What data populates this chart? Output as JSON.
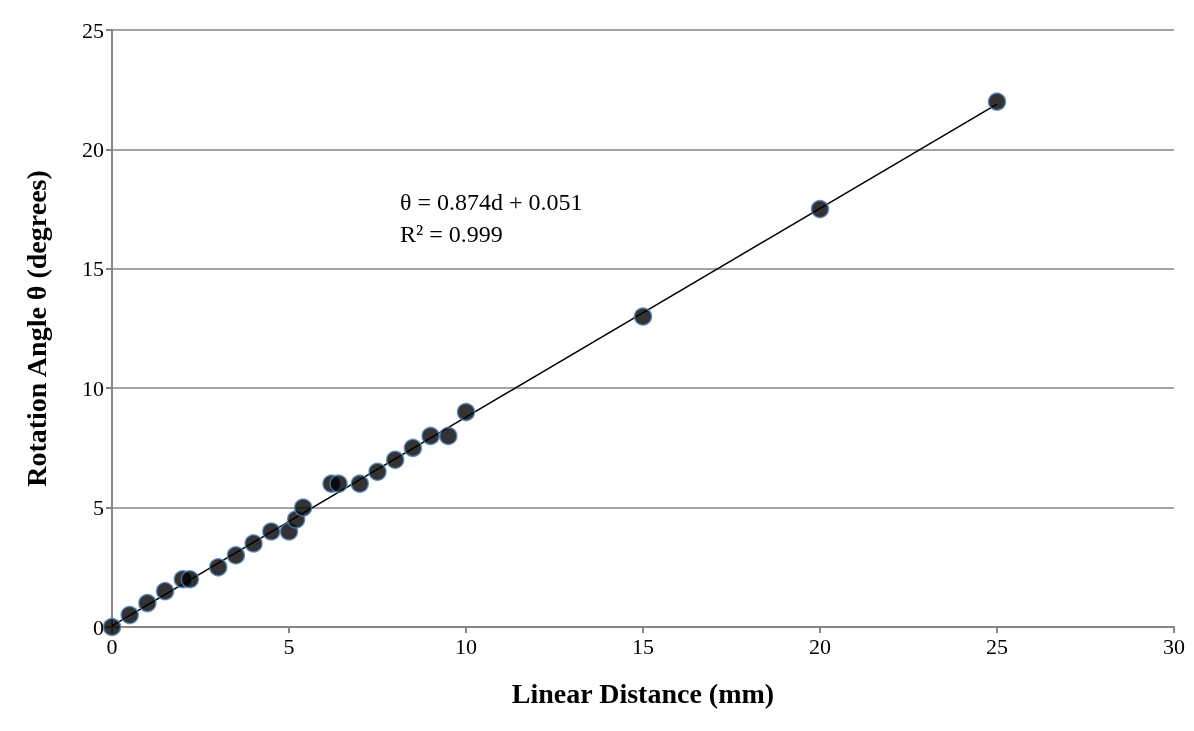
{
  "chart_data": {
    "type": "scatter",
    "xlabel": "Linear Distance (mm)",
    "ylabel": "Rotation Angle θ (degrees)",
    "xlim": [
      0,
      30
    ],
    "xticks": [
      0,
      5,
      10,
      15,
      20,
      25,
      30
    ],
    "ylim": [
      0,
      25
    ],
    "yticks": [
      0,
      5,
      10,
      15,
      20,
      25
    ],
    "grid": "y",
    "marker": "circle",
    "annotations": [
      "θ = 0.874d + 0.051",
      "R² = 0.999"
    ],
    "series": [
      {
        "color": "#000000",
        "x": [
          0,
          0.5,
          1,
          1.5,
          2,
          2.2,
          3,
          3.5,
          4,
          4.5,
          5,
          5.2,
          5.4,
          6.2,
          6.4,
          7,
          7.5,
          8,
          8.5,
          9,
          9.5,
          10,
          15,
          20,
          25
        ],
        "values": [
          0,
          0.5,
          1,
          1.5,
          2,
          2,
          2.5,
          3,
          3.5,
          4,
          4,
          4.5,
          5,
          6,
          6,
          6,
          6.5,
          7,
          7.5,
          8,
          8,
          9,
          13,
          17.5,
          22
        ]
      },
      {
        "type": "line",
        "color": "#000000",
        "marker": "none",
        "line_style": "solid",
        "x": [
          0,
          25
        ],
        "values": [
          0.05,
          21.9
        ]
      }
    ]
  }
}
